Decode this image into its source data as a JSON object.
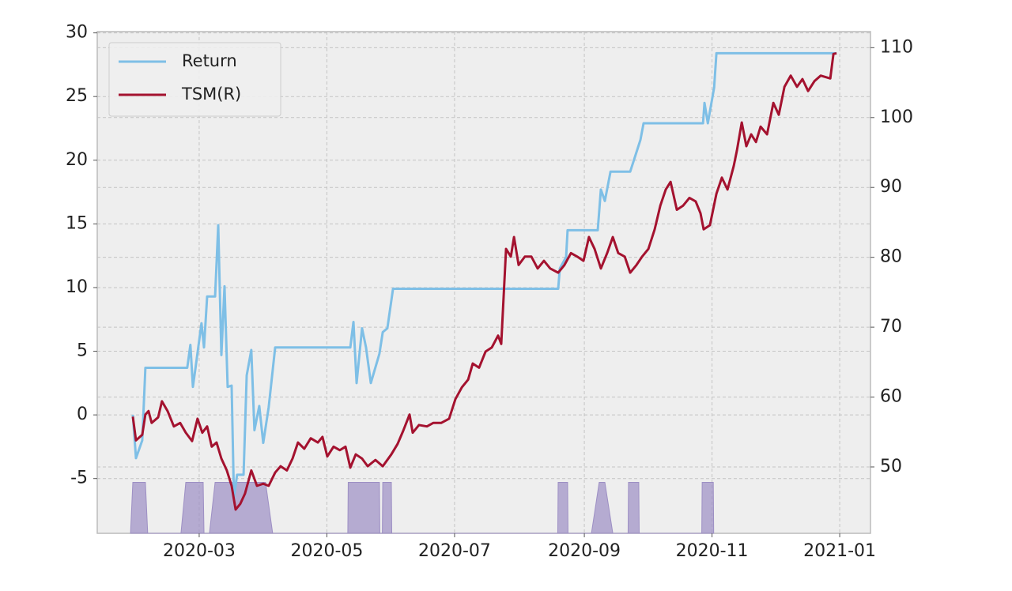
{
  "chart_data": {
    "type": "line",
    "xlim": [
      12.3,
      381.7
    ],
    "xticks": [
      {
        "value": 61,
        "label": "2020-03"
      },
      {
        "value": 122,
        "label": "2020-05"
      },
      {
        "value": 183,
        "label": "2020-07"
      },
      {
        "value": 245,
        "label": "2020-09"
      },
      {
        "value": 306,
        "label": "2020-11"
      },
      {
        "value": 367,
        "label": "2021-01"
      }
    ],
    "ylim": [
      -9.3,
      30.1
    ],
    "yticks": [
      -5,
      0,
      5,
      10,
      15,
      20,
      25,
      30
    ],
    "y2lim": [
      40.5,
      112.3
    ],
    "y2ticks": [
      50,
      60,
      70,
      80,
      90,
      100,
      110
    ],
    "grid": true,
    "legend": "upper left",
    "series": [
      {
        "name": "Return",
        "color": "#7ebfe6",
        "x": [
          29.3,
          30.8,
          33.8,
          35.3,
          55.3,
          56.8,
          58,
          59.5,
          62.1,
          63.3,
          64.8,
          68.6,
          70.1,
          71.6,
          73.1,
          74.6,
          76.5,
          77.6,
          79.1,
          82.2,
          83.7,
          85.9,
          87.4,
          89.7,
          91.6,
          94.2,
          97.3,
          133.2,
          134.7,
          136.2,
          138.8,
          140.7,
          143,
          147.1,
          148.7,
          150.9,
          153.6,
          232.5,
          233.3,
          236.3,
          237,
          251.4,
          252.9,
          254.8,
          257.5,
          266.9,
          271.8,
          273.3,
          301.7,
          302.4,
          304,
          307,
          308.1,
          365.5
        ],
        "values": [
          0,
          -3.4,
          -2.0,
          3.7,
          3.7,
          5.5,
          2.2,
          4,
          7.2,
          5.3,
          9.3,
          9.3,
          14.9,
          4.7,
          10.1,
          2.2,
          2.3,
          -6.5,
          -4.7,
          -4.7,
          3.1,
          5.1,
          -1.2,
          0.7,
          -2.2,
          0.6,
          5.3,
          5.3,
          7.3,
          2.5,
          6.8,
          5.3,
          2.5,
          4.8,
          6.5,
          6.8,
          9.9,
          9.9,
          11.5,
          12.4,
          14.5,
          14.5,
          17.7,
          16.8,
          19.1,
          19.1,
          21.6,
          22.9,
          22.9,
          24.5,
          22.9,
          25.7,
          28.4,
          28.4
        ]
      },
      {
        "name": "TSM(R)",
        "color": "#a4122f",
        "axis": "y2",
        "x": [
          29.3,
          30.8,
          33.8,
          35.3,
          36.8,
          38.3,
          41.4,
          43.2,
          45.9,
          48.9,
          51.9,
          54.6,
          57.6,
          60.2,
          62.5,
          64.8,
          67,
          69.3,
          71.6,
          74.2,
          76.5,
          78.4,
          80.6,
          82.9,
          85.9,
          88.6,
          91.6,
          94.2,
          97.3,
          99.9,
          102.9,
          105.6,
          108.2,
          111.2,
          114.3,
          117.7,
          119.9,
          122.2,
          125.2,
          128.2,
          130.9,
          133.2,
          135.8,
          138.8,
          141.5,
          145.2,
          148.7,
          152.8,
          155.8,
          158.5,
          161.5,
          163,
          166,
          169.8,
          172.8,
          176.6,
          180.4,
          183.4,
          186.5,
          189.5,
          191.7,
          194.7,
          197.8,
          200.8,
          203.8,
          205.3,
          207.6,
          209.9,
          211.4,
          213.6,
          216.6,
          219.7,
          222.7,
          225.7,
          228.7,
          232.5,
          235.5,
          238.6,
          241.6,
          244.6,
          247.2,
          249.9,
          252.9,
          255.9,
          258.6,
          261.2,
          264.3,
          266.9,
          269.9,
          272.6,
          275.6,
          278.6,
          281.3,
          283.9,
          286.2,
          289.2,
          292.2,
          295.2,
          298.2,
          300.5,
          302,
          305,
          308.1,
          310.7,
          313.4,
          316.4,
          317.9,
          320.2,
          322.4,
          324.7,
          327,
          329.2,
          332.3,
          335.3,
          337.9,
          340.6,
          343.6,
          346.6,
          349.2,
          351.9,
          354.9,
          357.9,
          362.5,
          364,
          365.5
        ],
        "values": [
          57.2,
          53.8,
          54.6,
          57.5,
          58.0,
          56.3,
          57.1,
          59.4,
          58.0,
          55.8,
          56.3,
          54.9,
          53.7,
          56.9,
          54.9,
          55.8,
          52.9,
          53.5,
          51.2,
          49.5,
          47.3,
          43.9,
          44.7,
          46.2,
          49.5,
          47.3,
          47.6,
          47.3,
          49.2,
          50.1,
          49.5,
          51.2,
          53.5,
          52.6,
          54.1,
          53.5,
          54.3,
          51.5,
          52.9,
          52.4,
          52.9,
          49.9,
          51.8,
          51.2,
          50.1,
          51.0,
          50.1,
          51.8,
          53.3,
          55.2,
          57.5,
          54.9,
          56.0,
          55.8,
          56.3,
          56.3,
          56.9,
          59.7,
          61.4,
          62.5,
          64.8,
          64.2,
          66.5,
          67.1,
          68.8,
          67.6,
          81.2,
          80.1,
          82.9,
          78.9,
          80.1,
          80.1,
          78.4,
          79.5,
          78.4,
          77.8,
          78.9,
          80.6,
          80.1,
          79.5,
          82.9,
          81.2,
          78.4,
          80.6,
          82.9,
          80.6,
          80.1,
          77.8,
          78.9,
          80.1,
          81.2,
          84.0,
          87.4,
          89.7,
          90.8,
          86.8,
          87.4,
          88.5,
          88.0,
          86.3,
          84.0,
          84.6,
          89.1,
          91.4,
          89.7,
          93.1,
          95.3,
          99.3,
          95.9,
          97.6,
          96.5,
          98.7,
          97.6,
          102.1,
          100.4,
          104.4,
          106.0,
          104.4,
          105.5,
          103.8,
          105.2,
          106.0,
          105.6,
          109.1,
          109.2
        ]
      },
      {
        "color": "#9d8fc4",
        "fill": true,
        "x": [
          28.2,
          29.3,
          35.3,
          36.4,
          52.3,
          54.6,
          62.9,
          63.3,
          65.9,
          68.6,
          92.7,
          96.1,
          132,
          132.2,
          147.1,
          147.3,
          148.5,
          148.7,
          152.8,
          153,
          232.3,
          232.5,
          237,
          237.2,
          248.4,
          252.1,
          254.8,
          258.6,
          265.9,
          266.1,
          271,
          271.2,
          301.1,
          301.3,
          306.6,
          306.8
        ],
        "values": [
          -9.3,
          -5.3,
          -5.3,
          -9.3,
          -9.3,
          -5.3,
          -5.3,
          -9.3,
          -9.3,
          -5.3,
          -5.3,
          -9.3,
          -9.3,
          -5.3,
          -5.3,
          -9.3,
          -9.3,
          -5.3,
          -5.3,
          -9.3,
          -9.3,
          -5.3,
          -5.3,
          -9.3,
          -9.3,
          -5.3,
          -5.3,
          -9.3,
          -9.3,
          -5.3,
          -5.3,
          -9.3,
          -9.3,
          -5.3,
          -5.3,
          -9.3
        ]
      }
    ]
  }
}
